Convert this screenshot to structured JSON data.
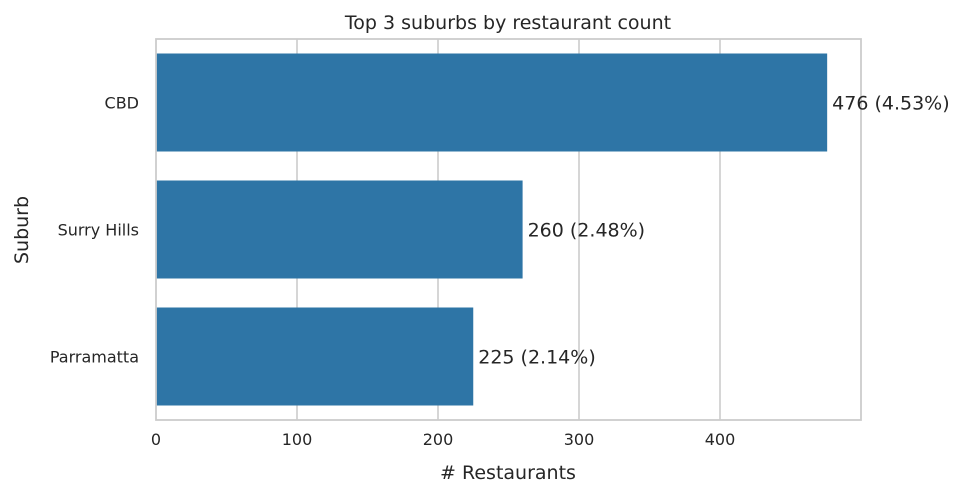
{
  "chart_data": {
    "type": "bar",
    "orientation": "horizontal",
    "title": "Top 3 suburbs by restaurant count",
    "xlabel": "# Restaurants",
    "ylabel": "Suburb",
    "categories": [
      "CBD",
      "Surry Hills",
      "Parramatta"
    ],
    "values": [
      476,
      260,
      225
    ],
    "data_labels": [
      "476  (4.53%)",
      "260  (2.48%)",
      "225  (2.14%)"
    ],
    "xlim": [
      0,
      500
    ],
    "xticks": [
      0,
      100,
      200,
      300,
      400
    ],
    "xtick_labels": [
      "0",
      "100",
      "200",
      "300",
      "400"
    ],
    "grid": "vertical",
    "bar_color": "#2e75a6",
    "grid_color": "#cccccc",
    "frame_color": "#cccccc"
  }
}
